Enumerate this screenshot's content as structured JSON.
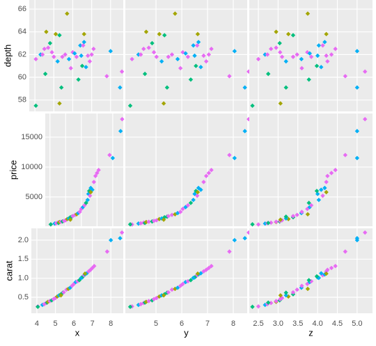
{
  "chart_data": {
    "type": "scatter_matrix",
    "grid": true,
    "colors": [
      "#E76BF3",
      "#00B0F6",
      "#E76BF3",
      "#E76BF3",
      "#00BF7D",
      "#A3A500",
      "#E76BF3",
      "#00BF7D",
      "#E76BF3",
      "#E76BF3",
      "#A3A500",
      "#00B0F6",
      "#00BF7D",
      "#00BF7D",
      "#E76BF3",
      "#E76BF3",
      "#A3A500",
      "#00B0F6",
      "#E76BF3",
      "#E76BF3",
      "#00B0F6",
      "#E76BF3",
      "#00BF7D",
      "#00B0F6",
      "#00B0F6",
      "#00BF7D",
      "#E76BF3",
      "#00B0F6",
      "#00B0F6",
      "#E76BF3",
      "#E76BF3",
      "#E76BF3",
      "#E76BF3",
      "#E76BF3",
      "#00B0F6",
      "#00B0F6",
      "#E76BF3",
      "#00BF7D",
      "#A3A500",
      "#A3A500"
    ],
    "columns": [
      {
        "label": "x",
        "xlim": [
          3.7,
          8.67
        ],
        "xticks": [
          4,
          5,
          6,
          7,
          8
        ],
        "values": [
          4.05,
          4.3,
          4.4,
          4.5,
          4.55,
          4.6,
          4.7,
          4.8,
          4.9,
          5.0,
          5.1,
          5.2,
          5.3,
          5.4,
          5.45,
          5.6,
          5.7,
          5.8,
          5.9,
          6.0,
          6.1,
          6.2,
          6.3,
          6.4,
          6.45,
          6.5,
          6.55,
          6.6,
          6.7,
          6.8,
          6.9,
          7.0,
          7.1,
          7.8,
          8.0,
          8.5,
          8.6,
          4.05,
          5.3,
          6.6
        ]
      },
      {
        "label": "y",
        "xlim": [
          3.81,
          8.54
        ],
        "xticks": [
          5,
          6,
          7,
          8
        ],
        "values": [
          4.07,
          4.32,
          4.41,
          4.52,
          4.57,
          4.62,
          4.72,
          4.85,
          4.92,
          5.02,
          5.13,
          5.22,
          5.33,
          5.43,
          5.48,
          5.62,
          5.74,
          5.84,
          5.95,
          6.04,
          6.15,
          6.24,
          6.35,
          6.45,
          6.5,
          6.55,
          6.6,
          6.65,
          6.74,
          6.85,
          6.95,
          7.05,
          7.15,
          7.85,
          8.05,
          8.45,
          8.6,
          4.0,
          5.3,
          6.62
        ]
      },
      {
        "label": "z",
        "xlim": [
          2.27,
          5.39
        ],
        "xticks": [
          2.5,
          {
            "value": 3,
            "label": "3.0"
          },
          3.5,
          {
            "value": 4,
            "label": "4.0"
          },
          4.5,
          {
            "value": 5,
            "label": "5.0"
          }
        ],
        "values": [
          2.5,
          2.67,
          2.73,
          2.82,
          2.75,
          2.95,
          2.95,
          3.04,
          3.05,
          3.1,
          3.26,
          3.2,
          3.38,
          3.2,
          3.38,
          3.48,
          3.75,
          3.59,
          3.6,
          3.74,
          3.8,
          3.84,
          3.78,
          4.03,
          4.0,
          3.98,
          4.13,
          4.18,
          4.09,
          4.22,
          4.25,
          4.35,
          4.45,
          4.7,
          5.0,
          5.0,
          5.2,
          2.35,
          3.06,
          4.22
        ]
      }
    ],
    "rows": [
      {
        "label": "depth",
        "ylim": [
          57.0,
          66.8
        ],
        "yticks": [
          58,
          60,
          62,
          64,
          66
        ],
        "values": [
          61.6,
          62.0,
          62.0,
          62.5,
          60.3,
          64.0,
          62.6,
          63.0,
          62.2,
          61.8,
          63.8,
          61.4,
          63.7,
          59.1,
          61.8,
          62.0,
          65.6,
          61.6,
          60.8,
          62.2,
          62.1,
          61.8,
          59.8,
          62.8,
          61.9,
          61.0,
          62.8,
          63.1,
          60.9,
          61.9,
          61.4,
          62.0,
          62.5,
          60.1,
          62.3,
          59.1,
          60.5,
          57.5,
          57.7,
          63.8
        ]
      },
      {
        "label": "price",
        "ylim": [
          100,
          18950
        ],
        "yticks": [
          5000,
          10000,
          15000
        ],
        "values": [
          400,
          550,
          600,
          700,
          650,
          800,
          850,
          900,
          1000,
          1100,
          1300,
          1400,
          1600,
          1700,
          1800,
          2000,
          2100,
          2300,
          2500,
          3000,
          3300,
          3600,
          4000,
          4500,
          5500,
          6000,
          5200,
          6500,
          6200,
          7500,
          8500,
          9000,
          9500,
          12000,
          11500,
          16000,
          18000,
          420,
          1200,
          5800
        ]
      },
      {
        "label": "carat",
        "ylim": [
          0.08,
          2.31
        ],
        "yticks": [
          0.5,
          {
            "value": 1,
            "label": "1.0"
          },
          1.5,
          {
            "value": 2,
            "label": "2.0"
          }
        ],
        "values": [
          0.26,
          0.3,
          0.32,
          0.35,
          0.36,
          0.38,
          0.4,
          0.42,
          0.45,
          0.48,
          0.52,
          0.55,
          0.58,
          0.62,
          0.63,
          0.7,
          0.72,
          0.75,
          0.8,
          0.85,
          0.9,
          0.92,
          0.95,
          1.01,
          1.02,
          1.05,
          1.08,
          1.1,
          1.13,
          1.18,
          1.22,
          1.27,
          1.32,
          1.7,
          2.0,
          2.05,
          2.2,
          0.25,
          0.55,
          1.12
        ]
      }
    ]
  }
}
